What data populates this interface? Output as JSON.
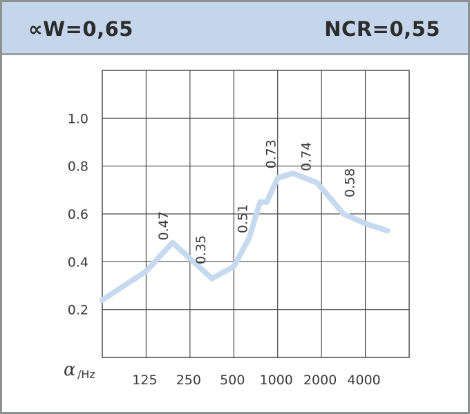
{
  "header": {
    "left_label": "∝W=0,65",
    "right_label": "NCR=0,55"
  },
  "chart_data": {
    "type": "line",
    "xlabel_symbol": "α",
    "xlabel_unit": "/Hz",
    "categories": [
      "125",
      "250",
      "500",
      "1000",
      "2000",
      "4000"
    ],
    "y_ticks": [
      "0.2",
      "0.4",
      "0.6",
      "0.8",
      "1.0"
    ],
    "ylim": [
      0,
      1.2
    ],
    "grid": true,
    "series": [
      {
        "color": "#c7d9ef",
        "x": [
          0,
          1,
          1.6,
          2.5,
          3,
          3.35,
          3.6,
          3.75,
          4,
          4.35,
          4.9,
          5.5,
          6,
          6.5
        ],
        "values": [
          0.24,
          0.36,
          0.48,
          0.33,
          0.38,
          0.5,
          0.65,
          0.65,
          0.75,
          0.77,
          0.73,
          0.6,
          0.56,
          0.53
        ]
      }
    ],
    "data_labels": [
      {
        "text": "0.47",
        "x": 1.5,
        "y": 0.55
      },
      {
        "text": "0.35",
        "x": 2.35,
        "y": 0.45
      },
      {
        "text": "0.51",
        "x": 3.3,
        "y": 0.58
      },
      {
        "text": "0.73",
        "x": 3.95,
        "y": 0.85
      },
      {
        "text": "0.74",
        "x": 4.75,
        "y": 0.84
      },
      {
        "text": "0.58",
        "x": 5.75,
        "y": 0.73
      }
    ]
  }
}
